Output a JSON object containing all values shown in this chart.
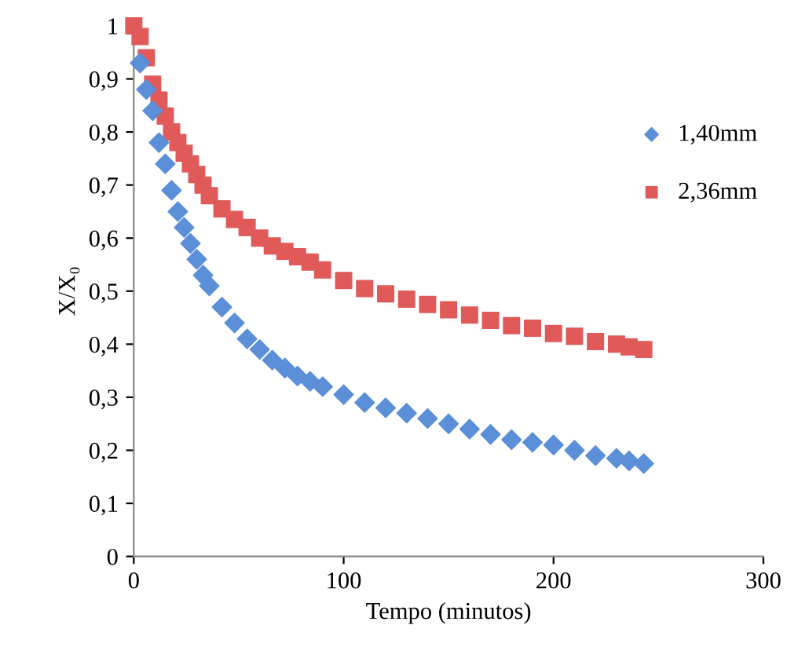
{
  "chart_data": {
    "type": "scatter",
    "xlabel": "Tempo (minutos)",
    "ylabel": "X/X₀",
    "x": [
      0,
      3,
      6,
      9,
      12,
      15,
      18,
      21,
      24,
      27,
      30,
      33,
      36,
      42,
      48,
      54,
      60,
      66,
      72,
      78,
      84,
      90,
      100,
      110,
      120,
      130,
      140,
      150,
      160,
      170,
      180,
      190,
      200,
      210,
      220,
      230,
      236,
      243
    ],
    "series": [
      {
        "name": "1,40mm",
        "color": "#5b8fd8",
        "marker": "diamond",
        "values": [
          null,
          0.93,
          0.88,
          0.84,
          0.78,
          0.74,
          0.69,
          0.65,
          0.62,
          0.59,
          0.56,
          0.53,
          0.51,
          0.47,
          0.44,
          0.41,
          0.39,
          0.37,
          0.355,
          0.34,
          0.33,
          0.32,
          0.305,
          0.29,
          0.28,
          0.27,
          0.26,
          0.25,
          0.24,
          0.23,
          0.22,
          0.215,
          0.21,
          0.2,
          0.19,
          0.185,
          0.18,
          0.175
        ]
      },
      {
        "name": "2,36mm",
        "color": "#e05a5a",
        "marker": "square",
        "values": [
          1.0,
          0.98,
          0.94,
          0.89,
          0.86,
          0.83,
          0.8,
          0.78,
          0.76,
          0.74,
          0.72,
          0.7,
          0.68,
          0.655,
          0.635,
          0.62,
          0.6,
          0.585,
          0.575,
          0.565,
          0.555,
          0.54,
          0.52,
          0.505,
          0.495,
          0.485,
          0.475,
          0.465,
          0.455,
          0.445,
          0.435,
          0.43,
          0.42,
          0.415,
          0.405,
          0.4,
          0.395,
          0.39
        ]
      }
    ],
    "xlim": [
      0,
      300
    ],
    "xticks": [
      0,
      100,
      200,
      300
    ],
    "ylim": [
      0,
      1
    ],
    "yticks": [
      0,
      {
        "value": 0.1,
        "label": "0,1"
      },
      {
        "value": 0.2,
        "label": "0,2"
      },
      {
        "value": 0.3,
        "label": "0,3"
      },
      {
        "value": 0.4,
        "label": "0,4"
      },
      {
        "value": 0.5,
        "label": "0,5"
      },
      {
        "value": 0.6,
        "label": "0,6"
      },
      {
        "value": 0.7,
        "label": "0,7"
      },
      {
        "value": 0.8,
        "label": "0,8"
      },
      {
        "value": 0.9,
        "label": "0,9"
      },
      1
    ],
    "legend": "right",
    "grid": false
  }
}
